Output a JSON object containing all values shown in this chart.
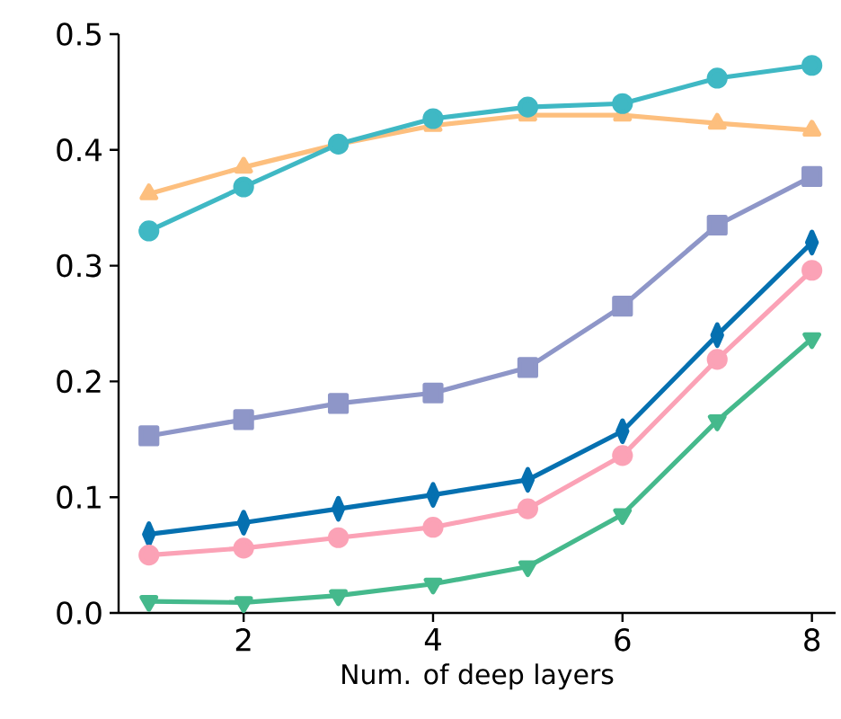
{
  "chart_data": {
    "type": "line",
    "xlabel": "Num. of deep layers",
    "x": [
      1,
      2,
      3,
      4,
      5,
      6,
      7,
      8
    ],
    "series": [
      {
        "color": "#fdbf7e",
        "marker": "triangle",
        "values": [
          0.362,
          0.385,
          0.405,
          0.421,
          0.43,
          0.43,
          0.423,
          0.417
        ]
      },
      {
        "color": "#3fb8c4",
        "marker": "circle",
        "values": [
          0.33,
          0.368,
          0.405,
          0.427,
          0.437,
          0.44,
          0.462,
          0.473
        ]
      },
      {
        "color": "#8e96c8",
        "marker": "square",
        "values": [
          0.153,
          0.167,
          0.181,
          0.19,
          0.212,
          0.265,
          0.335,
          0.377
        ]
      },
      {
        "color": "#0570b0",
        "marker": "diamond",
        "values": [
          0.068,
          0.078,
          0.09,
          0.102,
          0.115,
          0.157,
          0.24,
          0.32
        ]
      },
      {
        "color": "#fba2b6",
        "marker": "circle",
        "values": [
          0.05,
          0.056,
          0.065,
          0.074,
          0.09,
          0.136,
          0.219,
          0.296
        ]
      },
      {
        "color": "#45b98c",
        "marker": "triangle_down",
        "values": [
          0.01,
          0.009,
          0.015,
          0.025,
          0.04,
          0.085,
          0.166,
          0.237
        ]
      }
    ],
    "xlim": [
      0.68,
      8.25
    ],
    "ylim": [
      0,
      0.5
    ],
    "xticks": [
      2,
      4,
      6,
      8
    ],
    "yticks": [
      {
        "value": 0,
        "label": "0.0"
      },
      {
        "value": 0.1,
        "label": "0.1"
      },
      {
        "value": 0.2,
        "label": "0.2"
      },
      {
        "value": 0.3,
        "label": "0.3"
      },
      {
        "value": 0.4,
        "label": "0.4"
      },
      {
        "value": 0.5,
        "label": "0.5"
      }
    ],
    "grid": false,
    "line_style": "solid"
  }
}
